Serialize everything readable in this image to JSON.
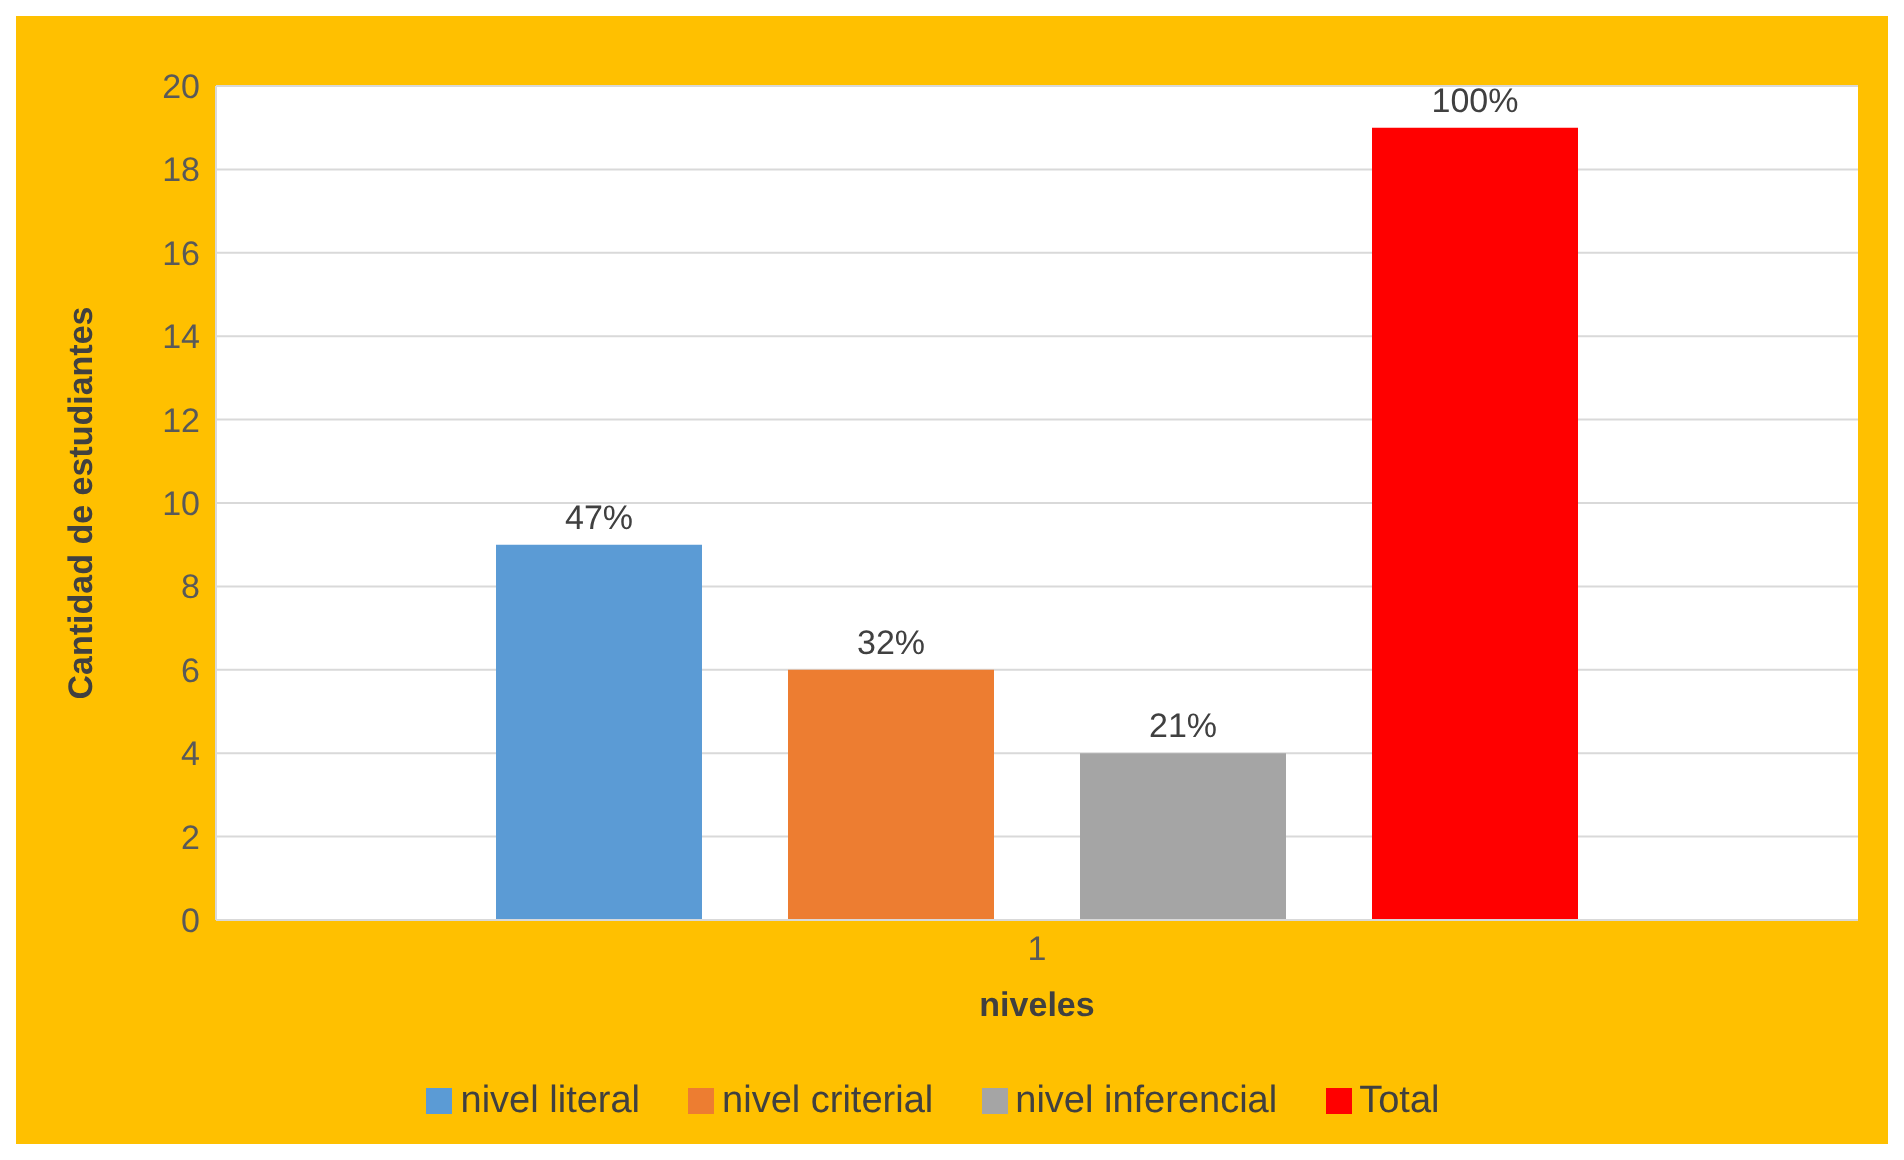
{
  "chart_data": {
    "type": "bar",
    "categories": [
      "1"
    ],
    "xlabel": "niveles",
    "ylabel": "Cantidad de estudiantes",
    "ylim": [
      0,
      20
    ],
    "yticks": [
      0,
      2,
      4,
      6,
      8,
      10,
      12,
      14,
      16,
      18,
      20
    ],
    "grid": "y",
    "legend": "bottom",
    "series": [
      {
        "name": "nivel literal",
        "color": "#5b9bd5",
        "values": [
          9
        ]
      },
      {
        "name": "nivel criterial",
        "color": "#ed7d31",
        "values": [
          6
        ]
      },
      {
        "name": "nivel inferencial",
        "color": "#a5a5a5",
        "values": [
          4
        ]
      },
      {
        "name": "Total",
        "color": "#ff0000",
        "values": [
          19
        ]
      }
    ],
    "annotations": [
      "47%",
      "32%",
      "21%",
      "100%"
    ]
  }
}
